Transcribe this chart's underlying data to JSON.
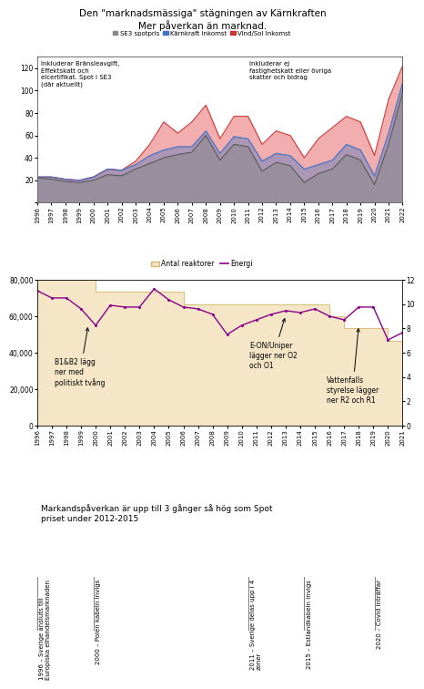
{
  "title1": "Den \"marknadsmässiga\" stägningen av Kärnkraften",
  "title2": "Mer påverkan än marknad.",
  "years_top": [
    1996,
    1997,
    1998,
    1999,
    2000,
    2001,
    2002,
    2003,
    2004,
    2005,
    2006,
    2007,
    2008,
    2009,
    2010,
    2011,
    2012,
    2013,
    2014,
    2015,
    2016,
    2017,
    2018,
    2019,
    2020,
    2021,
    2022
  ],
  "se3_spot": [
    22,
    21,
    19,
    18,
    20,
    25,
    24,
    30,
    35,
    40,
    43,
    45,
    60,
    38,
    52,
    50,
    28,
    36,
    33,
    18,
    26,
    30,
    43,
    38,
    16,
    52,
    98
  ],
  "karnkraft_inkomst": [
    23,
    23,
    21,
    20,
    23,
    30,
    29,
    34,
    42,
    47,
    50,
    50,
    64,
    44,
    59,
    57,
    37,
    44,
    42,
    30,
    34,
    38,
    52,
    47,
    24,
    62,
    107
  ],
  "vind_sol_inkomst": [
    23,
    23,
    21,
    20,
    23,
    30,
    29,
    37,
    52,
    72,
    62,
    72,
    87,
    57,
    77,
    77,
    52,
    64,
    60,
    40,
    57,
    67,
    77,
    72,
    42,
    92,
    122
  ],
  "annotation_left": "Inkluderar Bränsleavgift,\nEffektskatt och\nelcertifikat. Spot i SE3\n(där aktuellt)",
  "annotation_right": "Inkluderar ej\nfastighetskatt eller övriga\nskatter och bidrag",
  "years_mid": [
    1996,
    1997,
    1998,
    1999,
    2000,
    2001,
    2002,
    2003,
    2004,
    2005,
    2006,
    2007,
    2008,
    2009,
    2010,
    2011,
    2012,
    2013,
    2014,
    2015,
    2016,
    2017,
    2018,
    2019,
    2020,
    2021
  ],
  "reaktorer": [
    12,
    12,
    12,
    12,
    11,
    11,
    11,
    11,
    11,
    11,
    10,
    10,
    10,
    10,
    10,
    10,
    10,
    10,
    10,
    10,
    9,
    8,
    8,
    8,
    7,
    7
  ],
  "energi_twh": [
    74000,
    70000,
    70000,
    64000,
    55000,
    66000,
    65000,
    65000,
    75000,
    69000,
    65000,
    64000,
    61000,
    50000,
    55000,
    58000,
    61000,
    63000,
    62000,
    64000,
    60000,
    58000,
    65000,
    65000,
    47000,
    51000
  ],
  "reaktorer_max": 12,
  "energi_max": 80000,
  "annotation_b1b2_text": "B1&B2 lägg\nner med\npolitiskt tvång",
  "annotation_eon_text": "E-ON/Uniper\nlägger ner O2\noch O1",
  "annotation_vattenfall_text": "Vattenfalls\nstyrelse lägger\nner R2 och R1",
  "title_bottom": "Markandspåverkan är upp till 3 gånger så hög som Spot\npriset under 2012-2015",
  "events": [
    {
      "year": 1996,
      "label": "1996 – Sverige ansluts till\nEuropiska elhandelsmarknaden"
    },
    {
      "year": 2000,
      "label": "2000 – Polen kabeln invigs"
    },
    {
      "year": 2011,
      "label": "2011 – Sverige delas upp i 4\nzoner"
    },
    {
      "year": 2015,
      "label": "2015 – Estlandkabeln invigs"
    },
    {
      "year": 2020,
      "label": "2020 – Covid inträffar"
    }
  ],
  "bg_color": "#FFFFFF",
  "reaktorer_color": "#F5E6C8",
  "reaktorer_edge_color": "#D4B870",
  "energi_color": "#8B008B",
  "spot_color": "#888888",
  "karnkraft_color": "#4472C4",
  "vind_color": "#CC3333",
  "vind_fill": "#F0A0A0"
}
